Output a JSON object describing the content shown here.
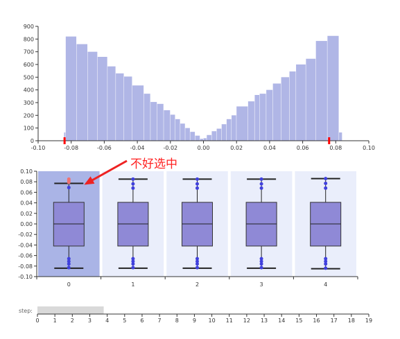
{
  "chart_data": [
    {
      "type": "bar",
      "subtype": "histogram",
      "x_ticks": [
        "-0.10",
        "-0.08",
        "-0.06",
        "-0.04",
        "-0.02",
        "0.00",
        "0.02",
        "0.04",
        "0.06",
        "0.08",
        "0.10"
      ],
      "y_ticks": [
        "0",
        "100",
        "200",
        "300",
        "400",
        "500",
        "600",
        "700",
        "800",
        "900"
      ],
      "xlim": [
        -0.1,
        0.1
      ],
      "ylim": [
        0,
        900
      ],
      "grid": false,
      "bar_color": "#b0b6e6",
      "brush_marker_color": "#ff0000",
      "brush_range": [
        -0.084,
        0.076
      ],
      "bins": [
        {
          "x0": -0.0843,
          "x1": -0.0833,
          "count": 65
        },
        {
          "x0": -0.0833,
          "x1": -0.0767,
          "count": 820
        },
        {
          "x0": -0.0767,
          "x1": -0.07,
          "count": 760
        },
        {
          "x0": -0.07,
          "x1": -0.064,
          "count": 700
        },
        {
          "x0": -0.064,
          "x1": -0.058,
          "count": 660
        },
        {
          "x0": -0.058,
          "x1": -0.053,
          "count": 585
        },
        {
          "x0": -0.053,
          "x1": -0.048,
          "count": 530
        },
        {
          "x0": -0.048,
          "x1": -0.043,
          "count": 505
        },
        {
          "x0": -0.043,
          "x1": -0.036,
          "count": 435
        },
        {
          "x0": -0.036,
          "x1": -0.032,
          "count": 370
        },
        {
          "x0": -0.032,
          "x1": -0.028,
          "count": 305
        },
        {
          "x0": -0.028,
          "x1": -0.024,
          "count": 290
        },
        {
          "x0": -0.024,
          "x1": -0.02,
          "count": 240
        },
        {
          "x0": -0.02,
          "x1": -0.017,
          "count": 205
        },
        {
          "x0": -0.017,
          "x1": -0.014,
          "count": 170
        },
        {
          "x0": -0.014,
          "x1": -0.011,
          "count": 135
        },
        {
          "x0": -0.011,
          "x1": -0.008,
          "count": 100
        },
        {
          "x0": -0.008,
          "x1": -0.005,
          "count": 70
        },
        {
          "x0": -0.005,
          "x1": -0.002,
          "count": 40
        },
        {
          "x0": -0.002,
          "x1": 0.0,
          "count": 15
        },
        {
          "x0": 0.0,
          "x1": 0.002,
          "count": 20
        },
        {
          "x0": 0.002,
          "x1": 0.005,
          "count": 45
        },
        {
          "x0": 0.005,
          "x1": 0.008,
          "count": 75
        },
        {
          "x0": 0.008,
          "x1": 0.011,
          "count": 95
        },
        {
          "x0": 0.011,
          "x1": 0.014,
          "count": 130
        },
        {
          "x0": 0.014,
          "x1": 0.017,
          "count": 170
        },
        {
          "x0": 0.017,
          "x1": 0.02,
          "count": 200
        },
        {
          "x0": 0.02,
          "x1": 0.027,
          "count": 270
        },
        {
          "x0": 0.027,
          "x1": 0.031,
          "count": 310
        },
        {
          "x0": 0.031,
          "x1": 0.034,
          "count": 360
        },
        {
          "x0": 0.034,
          "x1": 0.038,
          "count": 370
        },
        {
          "x0": 0.038,
          "x1": 0.042,
          "count": 400
        },
        {
          "x0": 0.042,
          "x1": 0.047,
          "count": 450
        },
        {
          "x0": 0.047,
          "x1": 0.052,
          "count": 500
        },
        {
          "x0": 0.052,
          "x1": 0.056,
          "count": 545
        },
        {
          "x0": 0.056,
          "x1": 0.062,
          "count": 600
        },
        {
          "x0": 0.062,
          "x1": 0.068,
          "count": 645
        },
        {
          "x0": 0.068,
          "x1": 0.075,
          "count": 785
        },
        {
          "x0": 0.075,
          "x1": 0.082,
          "count": 825
        },
        {
          "x0": 0.082,
          "x1": 0.084,
          "count": 65
        }
      ]
    },
    {
      "type": "boxplot",
      "categories": [
        "0",
        "1",
        "2",
        "3",
        "4"
      ],
      "y_ticks": [
        "0.10",
        "0.08",
        "0.06",
        "0.04",
        "0.02",
        "0.00",
        "-0.02",
        "-0.04",
        "-0.06",
        "-0.08",
        "-0.10"
      ],
      "ylim": [
        -0.1,
        0.1
      ],
      "grid": false,
      "box_fill": "#8f89d6",
      "point_color": "#4040dd",
      "highlight_point_color": "#f07070",
      "panel_color": "#eaeefb",
      "selected_panel_color": "#aab4e6",
      "selected_category": "0",
      "boxes": [
        {
          "category": "0",
          "min": -0.084,
          "q1": -0.042,
          "median": 0.0,
          "q3": 0.041,
          "max": 0.077,
          "points": [
            0.085,
            0.082,
            0.079,
            0.069,
            -0.066,
            -0.071,
            -0.076,
            -0.083
          ]
        },
        {
          "category": "1",
          "min": -0.084,
          "q1": -0.042,
          "median": 0.0,
          "q3": 0.041,
          "max": 0.085,
          "points": [
            0.085,
            0.076,
            0.068,
            -0.066,
            -0.071,
            -0.076,
            -0.083
          ]
        },
        {
          "category": "2",
          "min": -0.084,
          "q1": -0.042,
          "median": 0.0,
          "q3": 0.041,
          "max": 0.085,
          "points": [
            0.085,
            0.076,
            0.068,
            -0.066,
            -0.071,
            -0.076,
            -0.083
          ]
        },
        {
          "category": "3",
          "min": -0.084,
          "q1": -0.042,
          "median": 0.0,
          "q3": 0.041,
          "max": 0.085,
          "points": [
            0.085,
            0.076,
            0.068,
            -0.066,
            -0.071,
            -0.076,
            -0.083
          ]
        },
        {
          "category": "4",
          "min": -0.085,
          "q1": -0.042,
          "median": 0.0,
          "q3": 0.041,
          "max": 0.086,
          "points": [
            0.086,
            0.077,
            0.068,
            -0.066,
            -0.071,
            -0.076,
            -0.084
          ]
        }
      ],
      "highlighted_points": {
        "category": "0",
        "values": [
          0.085,
          0.082,
          0.079
        ]
      }
    }
  ],
  "annotation": {
    "text": "不好选中",
    "color": "#ff2222"
  },
  "step_slider": {
    "label": "step:",
    "ticks": [
      "0",
      "1",
      "2",
      "3",
      "4",
      "5",
      "6",
      "7",
      "8",
      "9",
      "10",
      "11",
      "12",
      "13",
      "14",
      "15",
      "16",
      "17",
      "18",
      "19"
    ],
    "range": [
      0,
      19
    ],
    "selected_range": [
      0,
      3.8
    ],
    "fill_color": "#d9d9d9"
  }
}
